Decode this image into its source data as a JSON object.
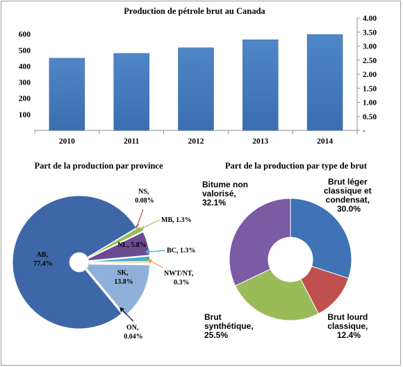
{
  "chart_data": [
    {
      "type": "bar",
      "title": "Production de pétrole brut  au Canada",
      "categories": [
        "2010",
        "2011",
        "2012",
        "2013",
        "2014"
      ],
      "values": [
        450,
        480,
        515,
        565,
        598
      ],
      "ylim": [
        0,
        700
      ],
      "left_ticks": [
        "100",
        "200",
        "300",
        "400",
        "500",
        "600"
      ],
      "right_ticks": [
        "-",
        "0.50",
        "1.00",
        "1.50",
        "2.00",
        "2.50",
        "3.00",
        "3.50",
        "4.00"
      ],
      "bar_color": "#4a7ebb",
      "grid": false
    },
    {
      "type": "pie",
      "title": "Part de la production  par province",
      "slices": [
        {
          "label": "AB,",
          "value_text": "77.4%",
          "value": 77.4,
          "color": "#3e67a8"
        },
        {
          "label": "SK,",
          "value_text": "13.8%",
          "value": 13.8,
          "color": "#8fb0d9"
        },
        {
          "label": "ON,",
          "value_text": "0.04%",
          "value": 0.04,
          "color": "#dcdcdc"
        },
        {
          "label": "NWT/NT,",
          "value_text": "0.3%",
          "value": 0.3,
          "color": "#f59b3d"
        },
        {
          "label": "BC, 1.3%",
          "value_text": "",
          "value": 1.3,
          "color": "#4bacc6"
        },
        {
          "label": "NL, 5.8%",
          "value_text": "",
          "value": 5.8,
          "color": "#6a4c93"
        },
        {
          "label": "MB, 1.3%",
          "value_text": "",
          "value": 1.3,
          "color": "#9bbb59"
        },
        {
          "label": "NS,",
          "value_text": "0.08%",
          "value": 0.08,
          "color": "#c0504d"
        }
      ]
    },
    {
      "type": "pie",
      "title": "Part de la production  par type de brut",
      "slices": [
        {
          "label_lines": [
            "Brut léger",
            "classique et",
            "condensat,",
            "30.0%"
          ],
          "value": 30.0,
          "color": "#3f73b5"
        },
        {
          "label_lines": [
            "Brut lourd",
            "classique,",
            "12.4%"
          ],
          "value": 12.4,
          "color": "#c0504d"
        },
        {
          "label_lines": [
            "Brut",
            "synthétique,",
            "25.5%"
          ],
          "value": 25.5,
          "color": "#9bbb59"
        },
        {
          "label_lines": [
            "Bitume non",
            "valorisé,",
            "32.1%"
          ],
          "value": 32.1,
          "color": "#7a5ba4"
        }
      ]
    }
  ]
}
